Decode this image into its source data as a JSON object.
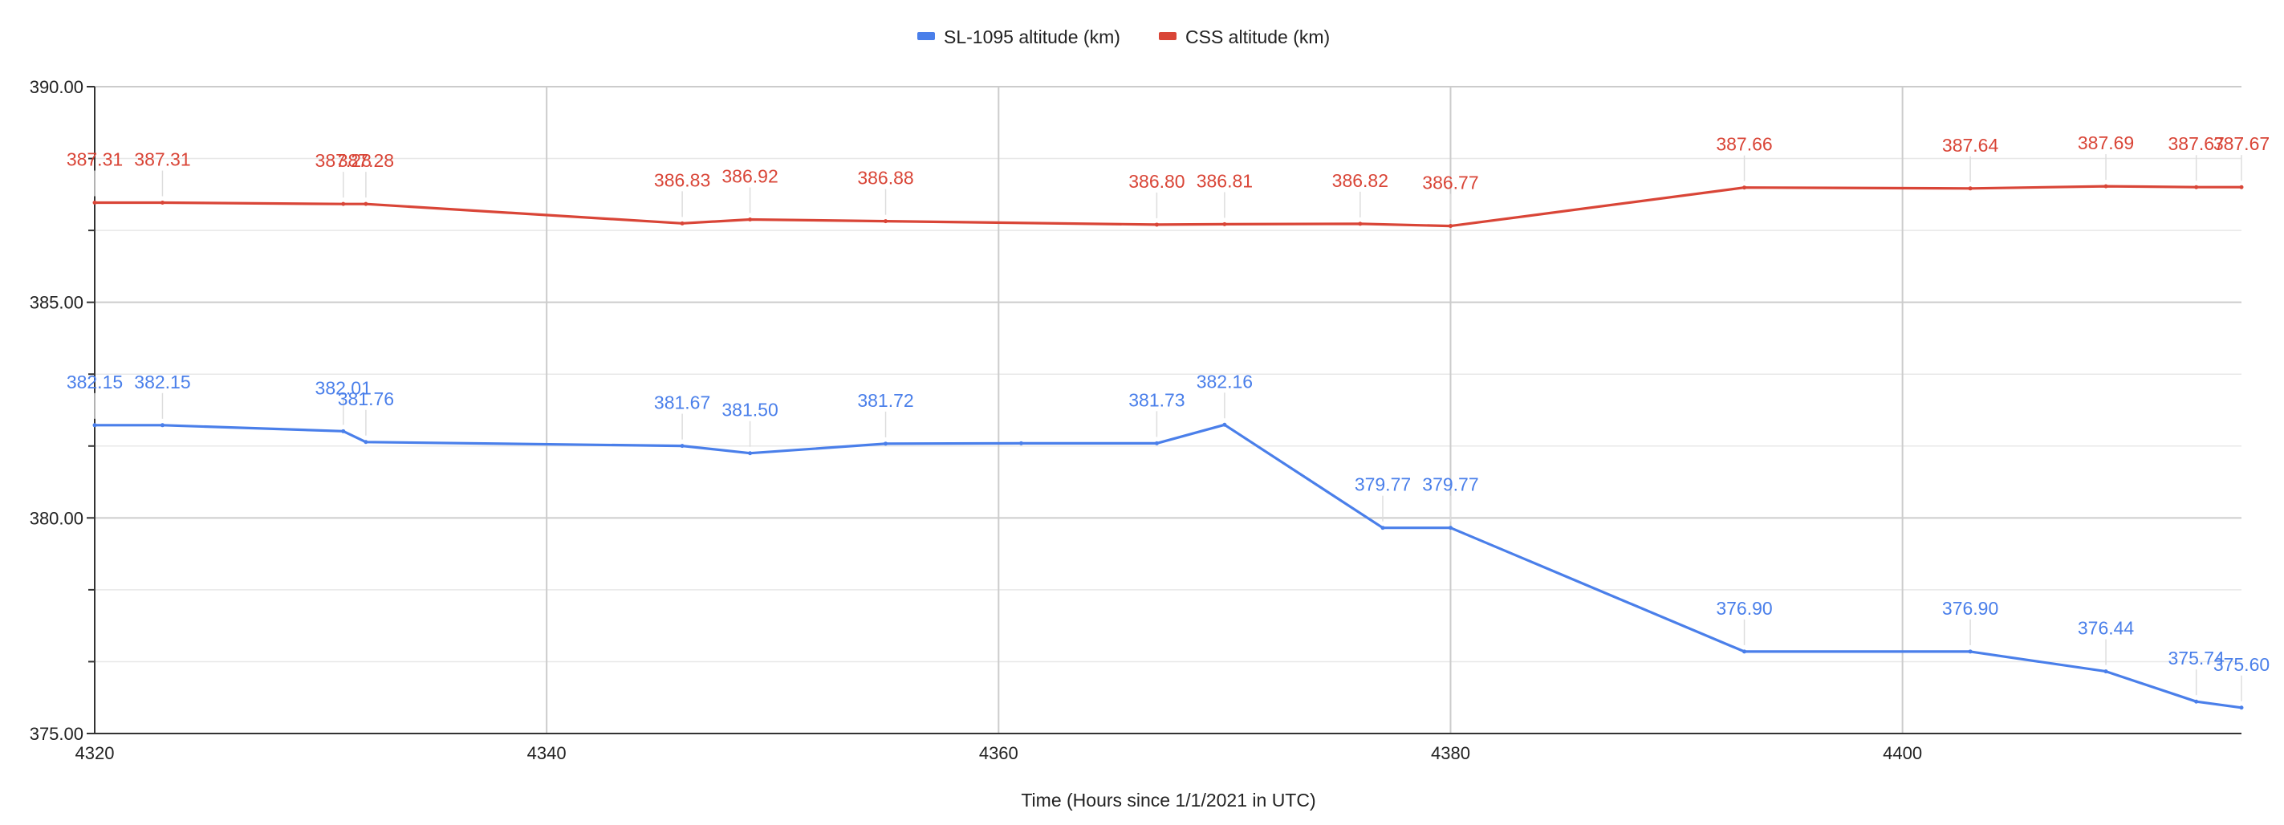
{
  "chart_data": {
    "type": "line",
    "title": "",
    "xlabel": "Time (Hours since 1/1/2021 in UTC)",
    "ylabel": "",
    "xlim": [
      4320,
      4415
    ],
    "ylim": [
      375,
      390
    ],
    "x_ticks": [
      4320,
      4340,
      4360,
      4380,
      4400
    ],
    "y_ticks": [
      "375.00",
      "380.00",
      "385.00",
      "390.00"
    ],
    "y_minor_step": 1.667,
    "grid": true,
    "legend_position": "top",
    "series": [
      {
        "name": "SL-1095 altitude (km)",
        "color": "#4a7fea",
        "x": [
          4320,
          4323,
          4331,
          4332,
          4346,
          4349,
          4355,
          4361,
          4367,
          4370,
          4377,
          4380,
          4393,
          4403,
          4409,
          4413,
          4415
        ],
        "y": [
          382.15,
          382.15,
          382.01,
          381.76,
          381.67,
          381.5,
          381.72,
          381.73,
          381.73,
          382.16,
          379.77,
          379.77,
          376.9,
          376.9,
          376.44,
          375.74,
          375.6
        ],
        "labels": [
          "382.15",
          "382.15",
          "382.01",
          "381.76",
          "381.67",
          "381.50",
          "381.72",
          "",
          "381.73",
          "382.16",
          "379.77",
          "379.77",
          "376.90",
          "376.90",
          "376.44",
          "375.74",
          "375.60"
        ]
      },
      {
        "name": "CSS altitude (km)",
        "color": "#d94537",
        "x": [
          4320,
          4323,
          4331,
          4332,
          4346,
          4349,
          4355,
          4367,
          4370,
          4376,
          4380,
          4393,
          4403,
          4409,
          4413,
          4415
        ],
        "y": [
          387.31,
          387.31,
          387.28,
          387.28,
          386.83,
          386.92,
          386.88,
          386.8,
          386.81,
          386.82,
          386.77,
          387.66,
          387.64,
          387.69,
          387.67,
          387.67
        ],
        "labels": [
          "387.31",
          "387.31",
          "387.28",
          "387.28",
          "386.83",
          "386.92",
          "386.88",
          "386.80",
          "386.81",
          "386.82",
          "386.77",
          "387.66",
          "387.64",
          "387.69",
          "387.67",
          "387.67"
        ]
      }
    ]
  }
}
